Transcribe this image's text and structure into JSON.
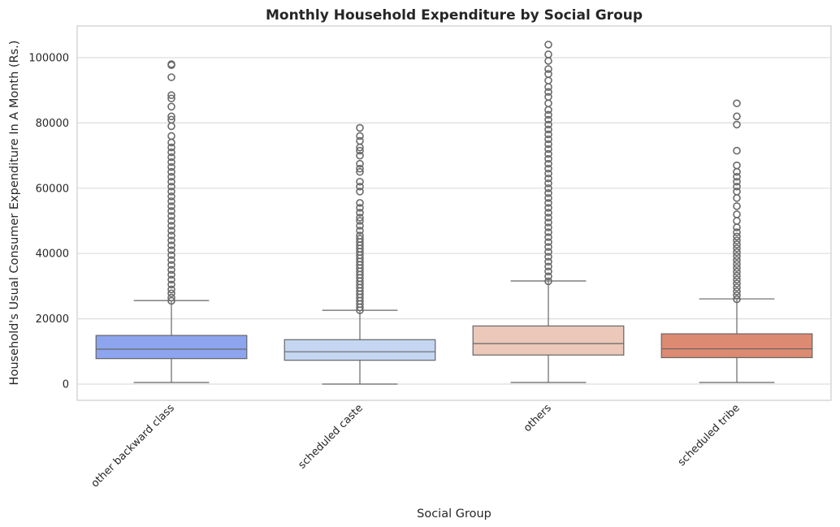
{
  "chart_data": {
    "type": "box",
    "title": "Monthly Household Expenditure by Social Group",
    "xlabel": "Social Group",
    "ylabel": "Household's Usual Consumer Expenditure In A Month (Rs.)",
    "ylim": [
      -5000,
      110000
    ],
    "yticks": [
      0,
      20000,
      40000,
      60000,
      80000,
      100000
    ],
    "grid": "horizontal",
    "categories": [
      "other backward class",
      "scheduled caste",
      "others",
      "scheduled tribe"
    ],
    "colors": [
      "#8DA4EF",
      "#C5D6F2",
      "#EBC8B9",
      "#DD8A72"
    ],
    "box_edge_color": "#666666",
    "outlier_color": "#6A6A6A",
    "boxes": [
      {
        "category": "other backward class",
        "whisker_low": 500,
        "q1": 7800,
        "median": 10700,
        "q3": 14900,
        "whisker_high": 25600,
        "outliers": [
          25500,
          26500,
          27800,
          29000,
          30500,
          32000,
          33500,
          35000,
          36500,
          38000,
          39500,
          41000,
          42500,
          44000,
          45500,
          47000,
          48500,
          50000,
          51500,
          53000,
          54500,
          56000,
          57500,
          59000,
          60500,
          62000,
          63500,
          65000,
          66500,
          68000,
          69500,
          71000,
          72500,
          74000,
          76000,
          79000,
          81000,
          82000,
          85000,
          87500,
          88500,
          94000,
          97700,
          98000
        ]
      },
      {
        "category": "scheduled caste",
        "whisker_low": 0,
        "q1": 7300,
        "median": 9900,
        "q3": 13600,
        "whisker_high": 22600,
        "outliers": [
          22600,
          23500,
          24500,
          25500,
          26500,
          27500,
          28500,
          29500,
          30500,
          31500,
          32500,
          33500,
          34500,
          35500,
          36500,
          37500,
          38500,
          39500,
          40500,
          41500,
          42500,
          43500,
          44500,
          45500,
          47000,
          48500,
          50000,
          51000,
          52500,
          54000,
          55500,
          59000,
          60500,
          62000,
          65000,
          66000,
          67500,
          70000,
          71500,
          72500,
          74500,
          76000,
          78500
        ]
      },
      {
        "category": "others",
        "whisker_low": 500,
        "q1": 8900,
        "median": 12400,
        "q3": 17800,
        "whisker_high": 31600,
        "outliers": [
          31500,
          33000,
          34500,
          36000,
          37500,
          39000,
          40500,
          42000,
          43500,
          45000,
          46500,
          48000,
          49500,
          51000,
          52500,
          54000,
          55500,
          57000,
          58500,
          60000,
          61500,
          63000,
          64500,
          66000,
          67500,
          69000,
          70500,
          72000,
          73500,
          75000,
          76500,
          78000,
          79500,
          81000,
          82500,
          84000,
          86000,
          88000,
          89500,
          91000,
          93000,
          95000,
          96500,
          99000,
          101000,
          104000
        ]
      },
      {
        "category": "scheduled tribe",
        "whisker_low": 500,
        "q1": 8100,
        "median": 10800,
        "q3": 15400,
        "whisker_high": 26100,
        "outliers": [
          26000,
          27200,
          28400,
          29600,
          30800,
          32000,
          33200,
          34400,
          35600,
          36800,
          38000,
          39200,
          40400,
          41600,
          42800,
          44000,
          45200,
          46500,
          48000,
          50000,
          52000,
          54500,
          57000,
          59000,
          60500,
          62000,
          63500,
          65000,
          67000,
          71500,
          79500,
          82000,
          86000
        ]
      }
    ]
  }
}
